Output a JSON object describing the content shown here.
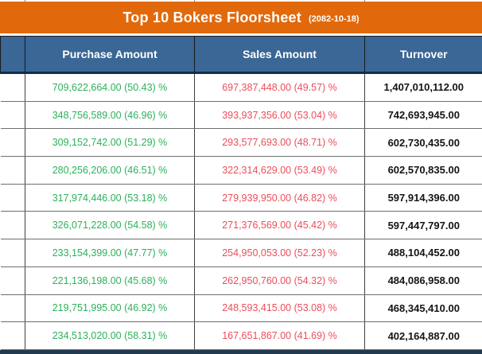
{
  "title": {
    "main": "Top 10 Bokers Floorsheet",
    "date": "(2082-10-18)"
  },
  "table": {
    "headers": [
      {
        "label": ""
      },
      {
        "label": "Purchase Amount"
      },
      {
        "label": "Sales Amount"
      },
      {
        "label": "Turnover"
      }
    ],
    "rows": [
      {
        "purchase": "709,622,664.00 (50.43) %",
        "sales": "697,387,448.00 (49.57) %",
        "turnover": "1,407,010,112.00"
      },
      {
        "purchase": "348,756,589.00 (46.96) %",
        "sales": "393,937,356.00 (53.04) %",
        "turnover": "742,693,945.00"
      },
      {
        "purchase": "309,152,742.00 (51.29) %",
        "sales": "293,577,693.00 (48.71) %",
        "turnover": "602,730,435.00"
      },
      {
        "purchase": "280,256,206.00 (46.51) %",
        "sales": "322,314,629.00 (53.49) %",
        "turnover": "602,570,835.00"
      },
      {
        "purchase": "317,974,446.00 (53.18) %",
        "sales": "279,939,950.00 (46.82) %",
        "turnover": "597,914,396.00"
      },
      {
        "purchase": "326,071,228.00 (54.58) %",
        "sales": "271,376,569.00 (45.42) %",
        "turnover": "597,447,797.00"
      },
      {
        "purchase": "233,154,399.00 (47.77) %",
        "sales": "254,950,053.00 (52.23) %",
        "turnover": "488,104,452.00"
      },
      {
        "purchase": "221,136,198.00 (45.68) %",
        "sales": "262,950,760.00 (54.32) %",
        "turnover": "484,086,958.00"
      },
      {
        "purchase": "219,751,995.00 (46.92) %",
        "sales": "248,593,415.00 (53.08) %",
        "turnover": "468,345,410.00"
      },
      {
        "purchase": "234,513,020.00 (58.31) %",
        "sales": "167,651,867.00 (41.69) %",
        "turnover": "402,164,887.00"
      }
    ]
  },
  "colors": {
    "title_bg": "#e2690b",
    "header_bg": "#3a6795",
    "purchase_text": "#2cb15a",
    "sales_text": "#ec4d5a",
    "turnover_text": "#141414",
    "footer_bar": "#223a50"
  }
}
